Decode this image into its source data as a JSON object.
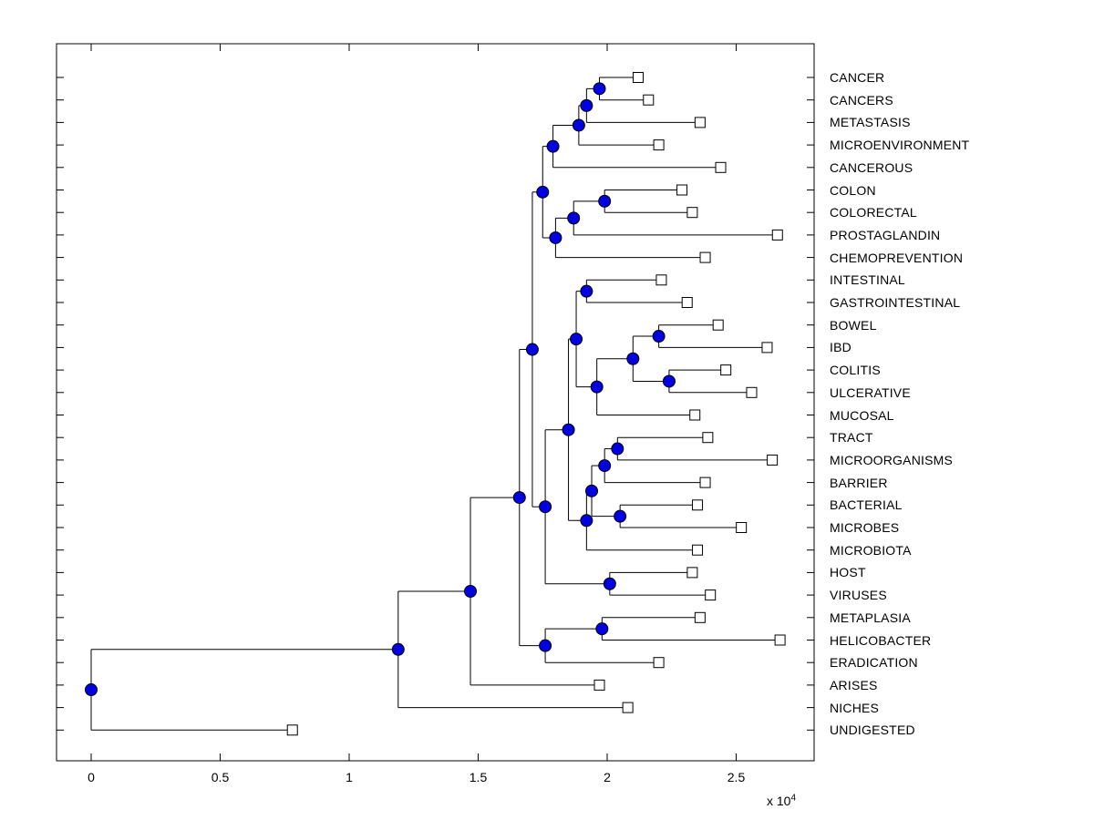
{
  "chart_data": {
    "type": "dendrogram",
    "title": "",
    "orientation": "horizontal, leaves on right",
    "grid": false,
    "styles": {
      "line_color": "#000000",
      "node_fill": "#0000E0",
      "node_edge": "#000000",
      "leaf_fill": "#ffffff",
      "leaf_edge": "#000000",
      "background": "#ffffff"
    },
    "x_axis": {
      "tick_labels": [
        "0",
        "0.5",
        "1",
        "1.5",
        "2",
        "2.5"
      ],
      "tick_values": [
        0,
        0.5,
        1,
        1.5,
        2,
        2.5
      ],
      "multiplier_label": "x 10",
      "multiplier_exponent": "4",
      "range": [
        -0.134,
        2.8
      ],
      "note": "distances in units of 10^4"
    },
    "leaf_labels": [
      "CANCER",
      "CANCERS",
      "METASTASIS",
      "MICROENVIRONMENT",
      "CANCEROUS",
      "COLON",
      "COLORECTAL",
      "PROSTAGLANDIN",
      "CHEMOPREVENTION",
      "INTESTINAL",
      "GASTROINTESTINAL",
      "BOWEL",
      "IBD",
      "COLITIS",
      "ULCERATIVE",
      "MUCOSAL",
      "TRACT",
      "MICROORGANISMS",
      "BARRIER",
      "BACTERIAL",
      "MICROBES",
      "MICROBIOTA",
      "HOST",
      "VIRUSES",
      "METAPLASIA",
      "HELICOBACTER",
      "ERADICATION",
      "ARISES",
      "NICHES",
      "UNDIGESTED"
    ],
    "tree": {
      "x": 0.0,
      "children": [
        {
          "x": 1.19,
          "children": [
            {
              "x": 1.47,
              "children": [
                {
                  "x": 1.66,
                  "children": [
                    {
                      "x": 1.71,
                      "children": [
                        {
                          "x": 1.75,
                          "children": [
                            {
                              "x": 1.79,
                              "children": [
                                {
                                  "x": 1.89,
                                  "children": [
                                    {
                                      "x": 1.92,
                                      "children": [
                                        {
                                          "x": 1.97,
                                          "children": [
                                            {
                                              "label": "CANCER",
                                              "x": 2.12
                                            },
                                            {
                                              "label": "CANCERS",
                                              "x": 2.16
                                            }
                                          ]
                                        },
                                        {
                                          "label": "METASTASIS",
                                          "x": 2.36
                                        }
                                      ]
                                    },
                                    {
                                      "label": "MICROENVIRONMENT",
                                      "x": 2.2
                                    }
                                  ]
                                },
                                {
                                  "label": "CANCEROUS",
                                  "x": 2.44
                                }
                              ]
                            },
                            {
                              "x": 1.8,
                              "children": [
                                {
                                  "x": 1.87,
                                  "children": [
                                    {
                                      "x": 1.99,
                                      "children": [
                                        {
                                          "label": "COLON",
                                          "x": 2.29
                                        },
                                        {
                                          "label": "COLORECTAL",
                                          "x": 2.33
                                        }
                                      ]
                                    },
                                    {
                                      "label": "PROSTAGLANDIN",
                                      "x": 2.66
                                    }
                                  ]
                                },
                                {
                                  "label": "CHEMOPREVENTION",
                                  "x": 2.38
                                }
                              ]
                            }
                          ]
                        },
                        {
                          "x": 1.76,
                          "children": [
                            {
                              "x": 1.85,
                              "children": [
                                {
                                  "x": 1.88,
                                  "children": [
                                    {
                                      "x": 1.92,
                                      "children": [
                                        {
                                          "label": "INTESTINAL",
                                          "x": 2.21
                                        },
                                        {
                                          "label": "GASTROINTESTINAL",
                                          "x": 2.31
                                        }
                                      ]
                                    },
                                    {
                                      "x": 1.96,
                                      "children": [
                                        {
                                          "x": 2.1,
                                          "children": [
                                            {
                                              "x": 2.2,
                                              "children": [
                                                {
                                                  "label": "BOWEL",
                                                  "x": 2.43
                                                },
                                                {
                                                  "label": "IBD",
                                                  "x": 2.62
                                                }
                                              ]
                                            },
                                            {
                                              "x": 2.24,
                                              "children": [
                                                {
                                                  "label": "COLITIS",
                                                  "x": 2.46
                                                },
                                                {
                                                  "label": "ULCERATIVE",
                                                  "x": 2.56
                                                }
                                              ]
                                            }
                                          ]
                                        },
                                        {
                                          "label": "MUCOSAL",
                                          "x": 2.34
                                        }
                                      ]
                                    }
                                  ]
                                },
                                {
                                  "x": 1.92,
                                  "children": [
                                    {
                                      "x": 1.94,
                                      "children": [
                                        {
                                          "x": 1.99,
                                          "children": [
                                            {
                                              "x": 2.04,
                                              "children": [
                                                {
                                                  "label": "TRACT",
                                                  "x": 2.39
                                                },
                                                {
                                                  "label": "MICROORGANISMS",
                                                  "x": 2.64
                                                }
                                              ]
                                            },
                                            {
                                              "label": "BARRIER",
                                              "x": 2.38
                                            }
                                          ]
                                        },
                                        {
                                          "x": 2.05,
                                          "children": [
                                            {
                                              "label": "BACTERIAL",
                                              "x": 2.35
                                            },
                                            {
                                              "label": "MICROBES",
                                              "x": 2.52
                                            }
                                          ]
                                        }
                                      ]
                                    },
                                    {
                                      "label": "MICROBIOTA",
                                      "x": 2.35
                                    }
                                  ]
                                }
                              ]
                            },
                            {
                              "x": 2.01,
                              "children": [
                                {
                                  "label": "HOST",
                                  "x": 2.33
                                },
                                {
                                  "label": "VIRUSES",
                                  "x": 2.4
                                }
                              ]
                            }
                          ]
                        }
                      ]
                    },
                    {
                      "x": 1.76,
                      "children": [
                        {
                          "x": 1.98,
                          "children": [
                            {
                              "label": "METAPLASIA",
                              "x": 2.36
                            },
                            {
                              "label": "HELICOBACTER",
                              "x": 2.67
                            }
                          ]
                        },
                        {
                          "label": "ERADICATION",
                          "x": 2.2
                        }
                      ]
                    }
                  ]
                },
                {
                  "label": "ARISES",
                  "x": 1.97
                }
              ]
            },
            {
              "label": "NICHES",
              "x": 2.08
            }
          ]
        },
        {
          "label": "UNDIGESTED",
          "x": 0.78
        }
      ]
    }
  }
}
